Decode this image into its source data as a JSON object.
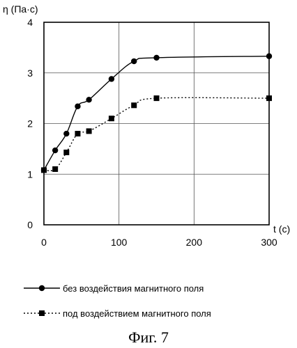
{
  "chart_data": {
    "type": "line",
    "ylabel": "η (Па·с)",
    "xlabel": "t (с)",
    "xlim": [
      0,
      300
    ],
    "ylim": [
      0,
      4
    ],
    "x_ticks": [
      "0",
      "100",
      "200",
      "300"
    ],
    "y_ticks": [
      "0",
      "1",
      "2",
      "3",
      "4"
    ],
    "grid": true,
    "legend_position": "bottom",
    "series": [
      {
        "name": "без воздействия магнитного поля",
        "marker": "circle",
        "line_style": "solid",
        "x": [
          0,
          15,
          30,
          45,
          60,
          90,
          120,
          150,
          300
        ],
        "y": [
          1.08,
          1.47,
          1.8,
          2.34,
          2.47,
          2.88,
          3.23,
          3.3,
          3.33
        ]
      },
      {
        "name": "под воздействием магнитного поля",
        "marker": "square",
        "line_style": "dotted",
        "x": [
          0,
          15,
          30,
          45,
          60,
          90,
          120,
          150,
          300
        ],
        "y": [
          1.08,
          1.1,
          1.43,
          1.8,
          1.85,
          2.1,
          2.36,
          2.5,
          2.5
        ]
      }
    ],
    "caption": "Фиг. 7"
  }
}
